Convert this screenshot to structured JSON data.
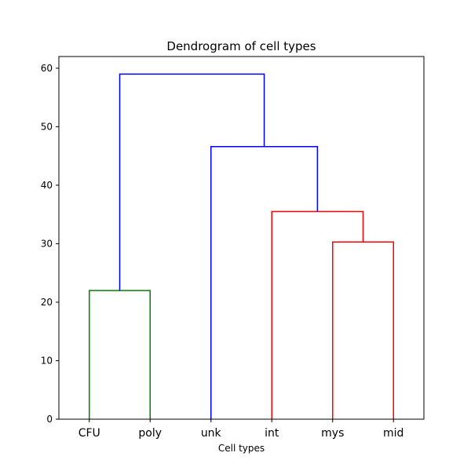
{
  "chart_data": {
    "type": "dendrogram",
    "title": "Dendrogram of cell types",
    "xlabel": "Cell types",
    "ylabel": "",
    "ylim": [
      0,
      62
    ],
    "yticks": [
      0,
      10,
      20,
      30,
      40,
      50,
      60
    ],
    "leaves": [
      "CFU",
      "poly",
      "unk",
      "int",
      "mys",
      "mid"
    ],
    "links": [
      {
        "left": "CFU",
        "right": "poly",
        "height": 22,
        "left_height": 0,
        "right_height": 0,
        "color": "#008000",
        "id": "cfu-poly"
      },
      {
        "left": "mys",
        "right": "mid",
        "height": 30.3,
        "left_height": 0,
        "right_height": 0,
        "color": "#ff0000",
        "id": "mys-mid"
      },
      {
        "left": "int",
        "right": "mys-mid",
        "height": 35.5,
        "left_height": 0,
        "right_height": 30.3,
        "color": "#ff0000",
        "id": "int-mys-mid"
      },
      {
        "left": "unk",
        "right": "int-mys-mid",
        "height": 46.6,
        "left_height": 0,
        "right_height": 35.5,
        "color": "#0000ff",
        "id": "unk-int-mys-mid"
      },
      {
        "left": "cfu-poly",
        "right": "unk-int-mys-mid",
        "height": 59,
        "left_height": 22,
        "right_height": 46.6,
        "color": "#0000ff",
        "id": "root"
      }
    ],
    "grid": false,
    "legend": "none"
  }
}
